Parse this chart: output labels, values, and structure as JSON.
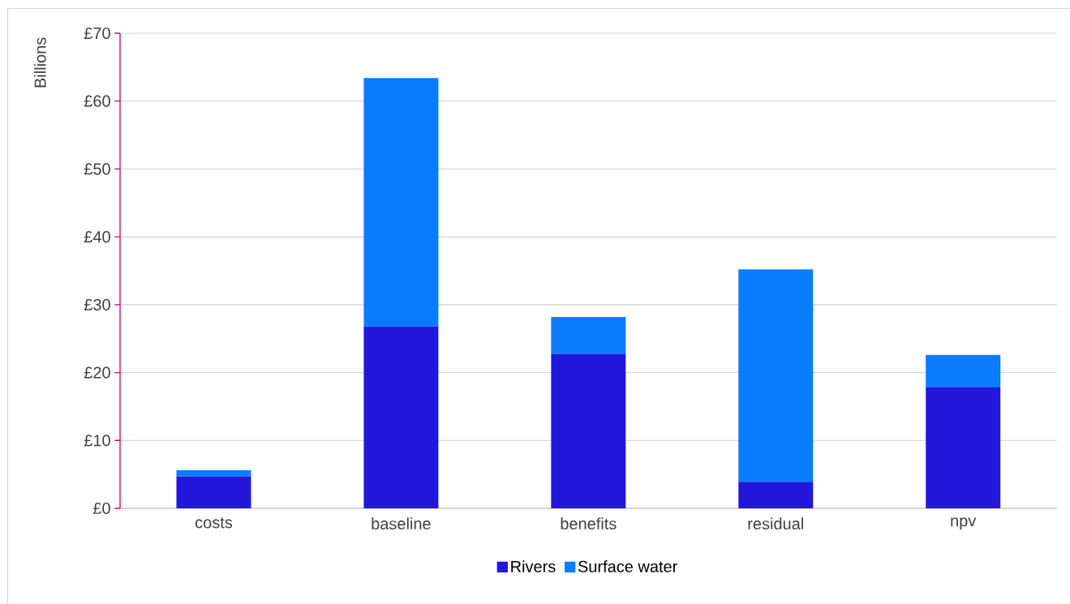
{
  "chart_data": {
    "type": "bar",
    "stacked": true,
    "ylabel": "Billions",
    "categories": [
      "costs",
      "baseline",
      "benefits",
      "residual",
      "npv"
    ],
    "series": [
      {
        "name": "Rivers",
        "color": "#2317dc",
        "values": [
          4.7,
          26.8,
          22.7,
          3.9,
          17.9
        ]
      },
      {
        "name": "Surface water",
        "color": "#0a7cff",
        "values": [
          0.9,
          36.6,
          5.5,
          31.3,
          4.7
        ]
      }
    ],
    "ylim": [
      0,
      70
    ],
    "yticks": [
      {
        "value": 0,
        "label": "£0"
      },
      {
        "value": 10,
        "label": "£10"
      },
      {
        "value": 20,
        "label": "£20"
      },
      {
        "value": 30,
        "label": "£30"
      },
      {
        "value": 40,
        "label": "£40"
      },
      {
        "value": 50,
        "label": "£50"
      },
      {
        "value": 60,
        "label": "£60"
      },
      {
        "value": 70,
        "label": "£70"
      }
    ],
    "grid": "y",
    "legend": "bottom"
  }
}
